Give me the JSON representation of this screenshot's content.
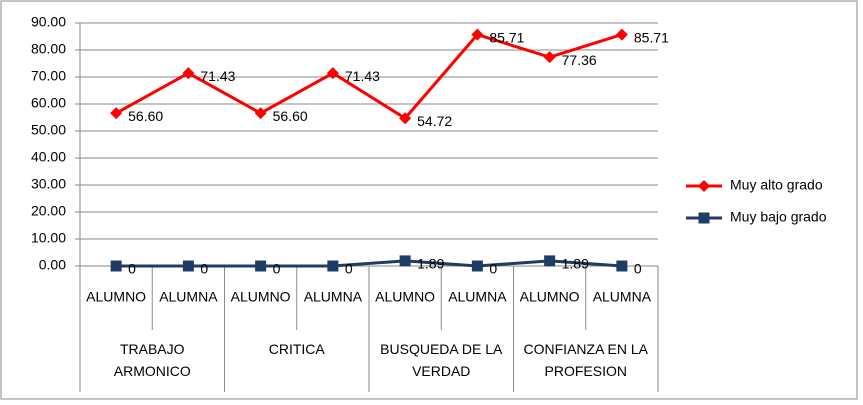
{
  "chart_data": {
    "type": "line",
    "categories": [
      "ALUMNO",
      "ALUMNA",
      "ALUMNO",
      "ALUMNA",
      "ALUMNO",
      "ALUMNA",
      "ALUMNO",
      "ALUMNA"
    ],
    "groups": [
      "TRABAJO ARMONICO",
      "CRITICA",
      "BUSQUEDA DE LA VERDAD",
      "CONFIANZA EN LA PROFESION"
    ],
    "series": [
      {
        "name": "Muy alto grado",
        "color": "#ff0000",
        "marker": "diamond",
        "values": [
          56.6,
          71.43,
          56.6,
          71.43,
          54.72,
          85.71,
          77.36,
          85.71
        ],
        "value_labels": [
          "56.60",
          "71.43",
          "56.60",
          "71.43",
          "54.72",
          "85.71",
          "77.36",
          "85.71"
        ]
      },
      {
        "name": "Muy bajo grado",
        "color": "#1f3c64",
        "marker": "square",
        "values": [
          0,
          0,
          0,
          0,
          1.89,
          0,
          1.89,
          0
        ]
      }
    ],
    "ylim": [
      0,
      90
    ],
    "yticks": [
      {
        "value": 0,
        "label": "0.00"
      },
      {
        "value": 10,
        "label": "10.00"
      },
      {
        "value": 20,
        "label": "20.00"
      },
      {
        "value": 30,
        "label": "30.00"
      },
      {
        "value": 40,
        "label": "40.00"
      },
      {
        "value": 50,
        "label": "50.00"
      },
      {
        "value": 60,
        "label": "60.00"
      },
      {
        "value": 70,
        "label": "70.00"
      },
      {
        "value": 80,
        "label": "80.00"
      },
      {
        "value": 90,
        "label": "90.00"
      }
    ],
    "grid": true,
    "legend": "right"
  }
}
